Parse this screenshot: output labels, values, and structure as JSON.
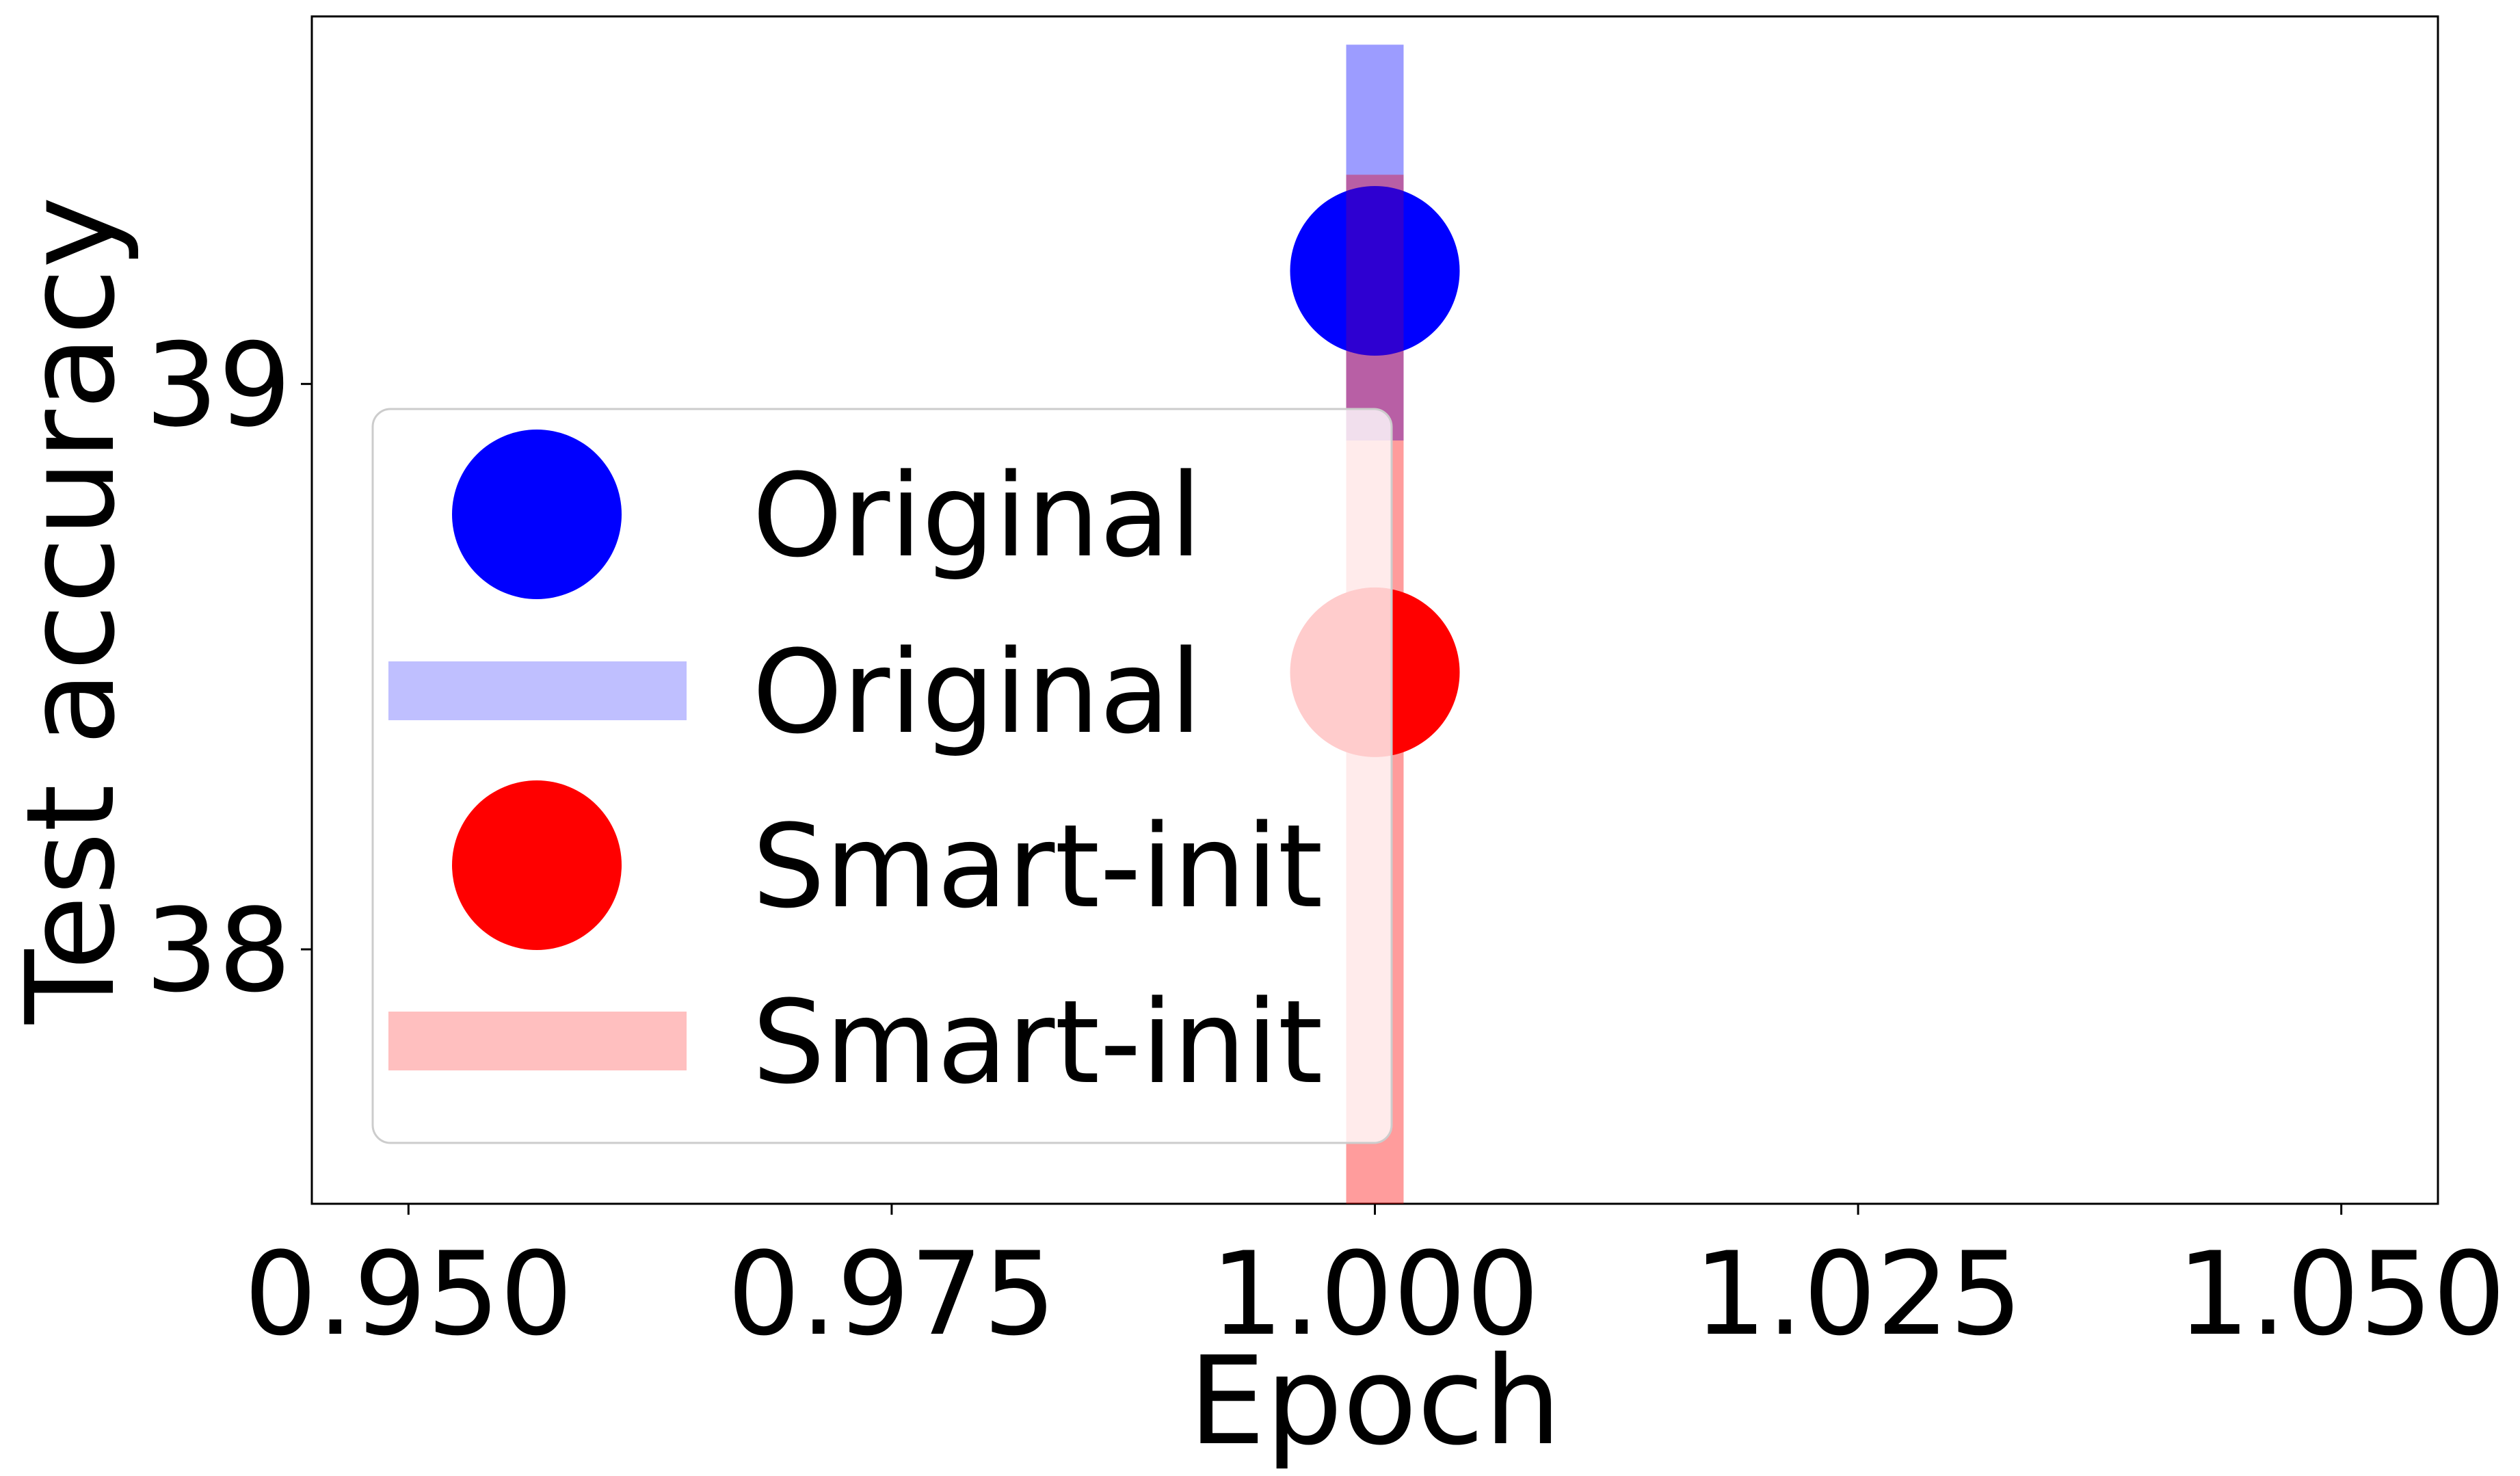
{
  "chart_data": {
    "type": "scatter",
    "title": "",
    "xlabel": "Epoch",
    "ylabel": "Test accuracy",
    "xlim": [
      0.945,
      1.055
    ],
    "ylim": [
      37.55,
      39.65
    ],
    "xticks": [
      0.95,
      0.975,
      1.0,
      1.025,
      1.05
    ],
    "xtick_labels": [
      "0.950",
      "0.975",
      "1.000",
      "1.025",
      "1.050"
    ],
    "yticks": [
      38,
      39
    ],
    "ytick_labels": [
      "38",
      "39"
    ],
    "grid": false,
    "legend": {
      "placement": "center-left",
      "entries": [
        {
          "label": "Original",
          "kind": "marker",
          "color": "#0000ff"
        },
        {
          "label": "Original",
          "kind": "band",
          "color": "#0000ff",
          "alpha": 0.25
        },
        {
          "label": "Smart-init",
          "kind": "marker",
          "color": "#ff0000"
        },
        {
          "label": "Smart-init",
          "kind": "band",
          "color": "#ff0000",
          "alpha": 0.25
        }
      ]
    },
    "series": [
      {
        "name": "Original",
        "color": "#0000ff",
        "x": [
          1.0
        ],
        "y": [
          39.2
        ],
        "err_low": [
          38.9
        ],
        "err_high": [
          39.6
        ]
      },
      {
        "name": "Smart-init",
        "color": "#ff0000",
        "x": [
          1.0
        ],
        "y": [
          38.49
        ],
        "err_low": [
          37.55
        ],
        "err_high": [
          39.37
        ]
      }
    ]
  }
}
